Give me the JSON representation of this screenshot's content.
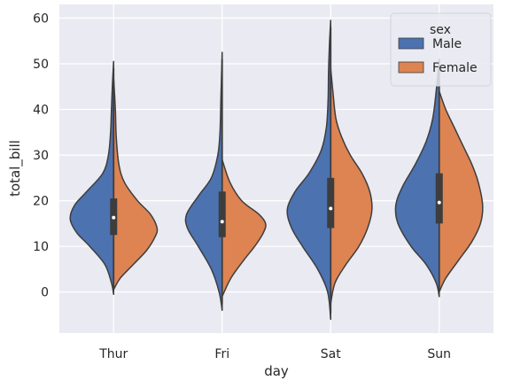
{
  "chart_data": {
    "type": "violin",
    "split": true,
    "xlabel": "day",
    "ylabel": "total_bill",
    "ylim": [
      -9,
      63
    ],
    "yticks": [
      0,
      10,
      20,
      30,
      40,
      50,
      60
    ],
    "grid": true,
    "legend": {
      "title": "sex",
      "placement": "top-right",
      "entries": [
        {
          "name": "Male",
          "color": "#4c72b0"
        },
        {
          "name": "Female",
          "color": "#dd8452"
        }
      ]
    },
    "categories": [
      "Thur",
      "Fri",
      "Sat",
      "Sun"
    ],
    "series": [
      {
        "name": "Male",
        "color": "#4c72b0",
        "violins": [
          {
            "min": -0.5,
            "max": 50.5,
            "median": 16.3,
            "q1": 12.5,
            "q3": 20.5
          },
          {
            "min": -4,
            "max": 52.5,
            "median": 15.4,
            "q1": 12,
            "q3": 22
          },
          {
            "min": -6,
            "max": 59.5,
            "median": 18.3,
            "q1": 14,
            "q3": 25
          },
          {
            "min": -1,
            "max": 51,
            "median": 19.6,
            "q1": 15,
            "q3": 26
          }
        ]
      },
      {
        "name": "Female",
        "color": "#dd8452",
        "violins": [
          {
            "min": 0.5,
            "max": 47,
            "median": 16.3,
            "q1": 12.5,
            "q3": 20.5
          },
          {
            "min": -1,
            "max": 29,
            "median": 15.4,
            "q1": 12,
            "q3": 22
          },
          {
            "min": -2.5,
            "max": 49,
            "median": 18.3,
            "q1": 14,
            "q3": 25
          },
          {
            "min": 0,
            "max": 44,
            "median": 19.6,
            "q1": 15,
            "q3": 26
          }
        ]
      }
    ]
  }
}
